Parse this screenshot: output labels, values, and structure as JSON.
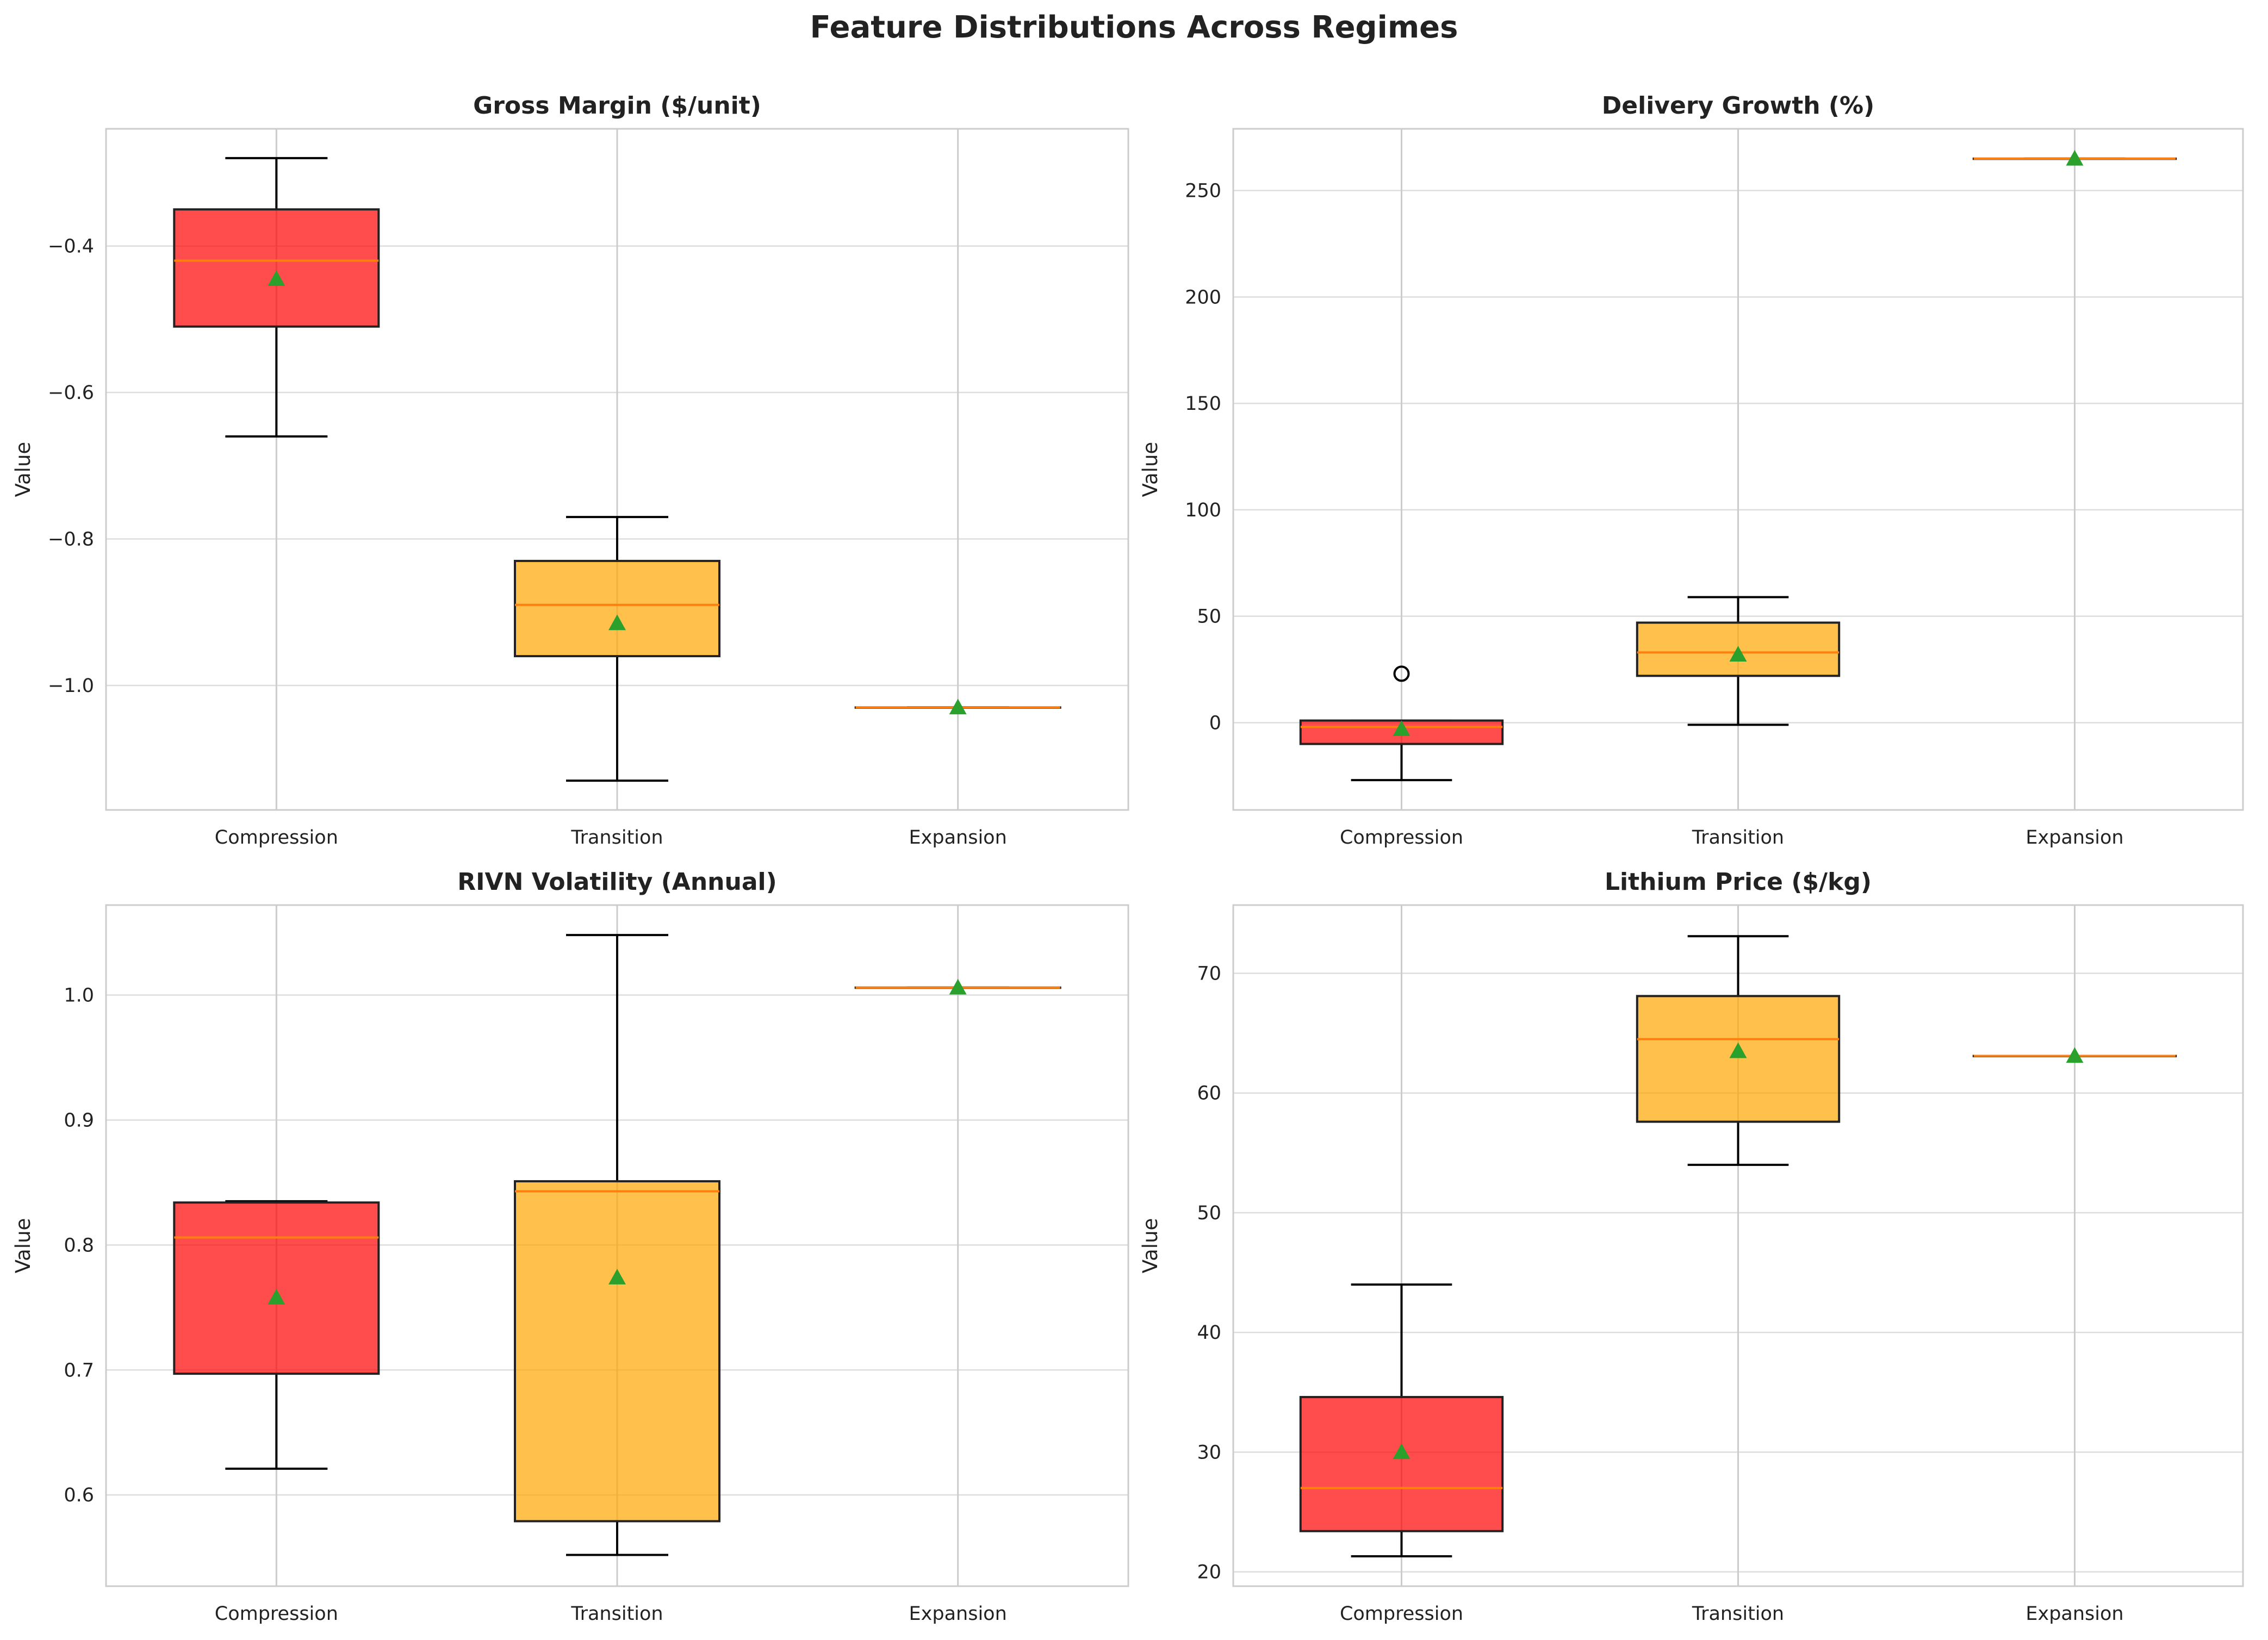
{
  "title": "Feature Distributions Across Regimes",
  "colors": {
    "Compression": "#ff0000",
    "Transition": "#ffa500",
    "Expansion": "#2e8b57",
    "median": "#ff7f0e",
    "mean_marker": "#2ca02c",
    "grid": "#dddddd",
    "frame": "#cccccc"
  },
  "chart_data": [
    {
      "type": "box",
      "title": "Gross Margin ($/unit)",
      "ylabel": "Value",
      "categories": [
        "Compression",
        "Transition",
        "Expansion"
      ],
      "ylim": [
        -1.17,
        -0.24
      ],
      "yticks": [
        -1.0,
        -0.8,
        -0.6,
        -0.4
      ],
      "ytick_labels": [
        "−1.0",
        "−0.8",
        "−0.6",
        "−0.4"
      ],
      "boxes": [
        {
          "whislo": -0.66,
          "q1": -0.51,
          "med": -0.42,
          "q3": -0.35,
          "whishi": -0.28,
          "mean": -0.445,
          "fliers": []
        },
        {
          "whislo": -1.13,
          "q1": -0.96,
          "med": -0.89,
          "q3": -0.83,
          "whishi": -0.77,
          "mean": -0.915,
          "fliers": []
        },
        {
          "whislo": -1.03,
          "q1": -1.03,
          "med": -1.03,
          "q3": -1.03,
          "whishi": -1.03,
          "mean": -1.03,
          "fliers": []
        }
      ]
    },
    {
      "type": "box",
      "title": "Delivery Growth (%)",
      "ylabel": "Value",
      "categories": [
        "Compression",
        "Transition",
        "Expansion"
      ],
      "ylim": [
        -41,
        279
      ],
      "yticks": [
        0,
        50,
        100,
        150,
        200,
        250
      ],
      "ytick_labels": [
        "0",
        "50",
        "100",
        "150",
        "200",
        "250"
      ],
      "boxes": [
        {
          "whislo": -27,
          "q1": -10,
          "med": -2,
          "q3": 1,
          "whishi": 1,
          "mean": -3,
          "fliers": [
            23
          ]
        },
        {
          "whislo": -1,
          "q1": 22,
          "med": 33,
          "q3": 47,
          "whishi": 59,
          "mean": 32,
          "fliers": []
        },
        {
          "whislo": 265,
          "q1": 265,
          "med": 265,
          "q3": 265,
          "whishi": 265,
          "mean": 265,
          "fliers": []
        }
      ]
    },
    {
      "type": "box",
      "title": "RIVN Volatility (Annual)",
      "ylabel": "Value",
      "categories": [
        "Compression",
        "Transition",
        "Expansion"
      ],
      "ylim": [
        0.527,
        1.072
      ],
      "yticks": [
        0.6,
        0.7,
        0.8,
        0.9,
        1.0
      ],
      "ytick_labels": [
        "0.6",
        "0.7",
        "0.8",
        "0.9",
        "1.0"
      ],
      "boxes": [
        {
          "whislo": 0.621,
          "q1": 0.697,
          "med": 0.806,
          "q3": 0.834,
          "whishi": 0.835,
          "mean": 0.758,
          "fliers": []
        },
        {
          "whislo": 0.552,
          "q1": 0.579,
          "med": 0.843,
          "q3": 0.851,
          "whishi": 1.048,
          "mean": 0.774,
          "fliers": []
        },
        {
          "whislo": 1.006,
          "q1": 1.006,
          "med": 1.006,
          "q3": 1.006,
          "whishi": 1.006,
          "mean": 1.006,
          "fliers": []
        }
      ]
    },
    {
      "type": "box",
      "title": "Lithium Price ($/kg)",
      "ylabel": "Value",
      "categories": [
        "Compression",
        "Transition",
        "Expansion"
      ],
      "ylim": [
        18.8,
        75.7
      ],
      "yticks": [
        20,
        30,
        40,
        50,
        60,
        70
      ],
      "ytick_labels": [
        "20",
        "30",
        "40",
        "50",
        "60",
        "70"
      ],
      "boxes": [
        {
          "whislo": 21.3,
          "q1": 23.4,
          "med": 27.0,
          "q3": 34.6,
          "whishi": 44.0,
          "mean": 30.0,
          "fliers": []
        },
        {
          "whislo": 54.0,
          "q1": 57.6,
          "med": 64.5,
          "q3": 68.1,
          "whishi": 73.1,
          "mean": 63.5,
          "fliers": []
        },
        {
          "whislo": 63.1,
          "q1": 63.1,
          "med": 63.1,
          "q3": 63.1,
          "whishi": 63.1,
          "mean": 63.1,
          "fliers": []
        }
      ]
    }
  ]
}
